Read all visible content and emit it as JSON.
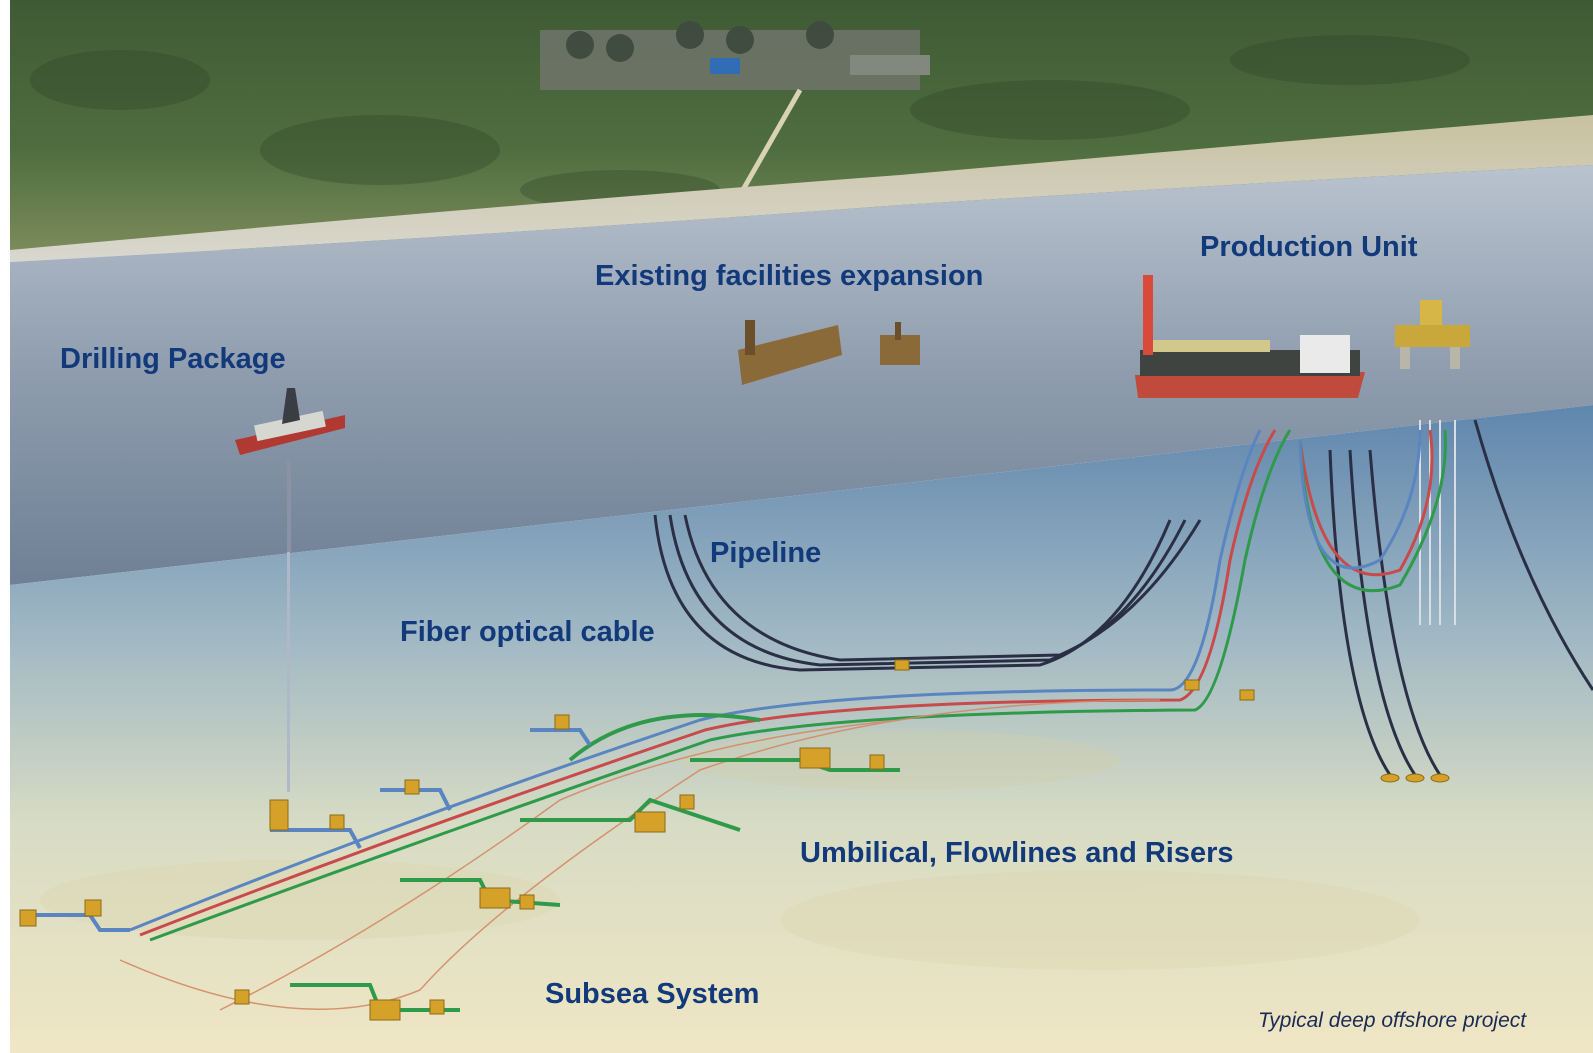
{
  "labels": {
    "drilling": "Drilling Package",
    "existing": "Existing facilities expansion",
    "production": "Production Unit",
    "pipeline": "Pipeline",
    "fiber": "Fiber optical cable",
    "umbilical": "Umbilical, Flowlines and Risers",
    "subsea": "Subsea System"
  },
  "caption": "Typical deep offshore project",
  "colors": {
    "label": "#123a7a",
    "umbilical": "#2e9a4a",
    "flowline_red": "#c94a4a",
    "flowline_blue": "#5a85c0",
    "pipeline_dark": "#2a2f45",
    "equipment": "#d6a128"
  }
}
